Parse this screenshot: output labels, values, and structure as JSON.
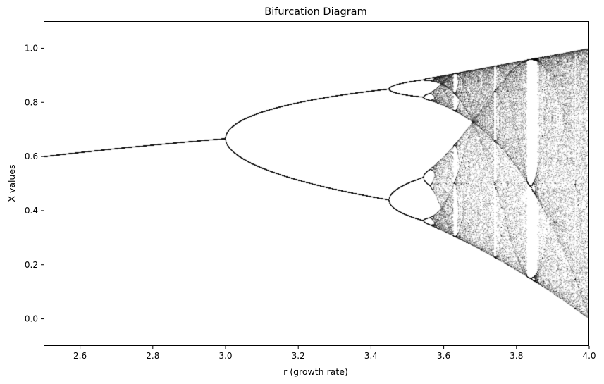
{
  "chart_data": {
    "type": "scatter",
    "title": "Bifurcation Diagram",
    "xlabel": "r (growth rate)",
    "ylabel": "X values",
    "xlim": [
      2.5,
      4.0
    ],
    "ylim": [
      -0.1,
      1.1
    ],
    "x_ticks": [
      "2.6",
      "2.8",
      "3.0",
      "3.2",
      "3.4",
      "3.6",
      "3.8",
      "4.0"
    ],
    "y_ticks": [
      "0.0",
      "0.2",
      "0.4",
      "0.6",
      "0.8",
      "1.0"
    ],
    "grid": false,
    "legend": "none",
    "marker_color": "#000000",
    "series": [
      {
        "points_description_free": true,
        "fixed_point_branch": [
          {
            "r": 2.5,
            "x": 0.6
          },
          {
            "r": 2.8,
            "x": 0.643
          },
          {
            "r": 3.0,
            "x": 0.667
          }
        ],
        "period2_branches": [
          {
            "r": 3.2,
            "x": [
              0.513,
              0.799
            ]
          },
          {
            "r": 3.4,
            "x": [
              0.452,
              0.842
            ]
          },
          {
            "r": 3.449,
            "x": [
              0.44,
              0.85
            ]
          }
        ],
        "period4_onset_r": 3.449,
        "period8_onset_r": 3.544,
        "chaos_onset_r": 3.5699,
        "period3_window_r": [
          3.828,
          3.857
        ],
        "upper_envelope": [
          {
            "r": 3.57,
            "x": 0.892
          },
          {
            "r": 3.8,
            "x": 0.95
          },
          {
            "r": 4.0,
            "x": 1.0
          }
        ],
        "lower_envelope": [
          {
            "r": 3.57,
            "x": 0.35
          },
          {
            "r": 3.8,
            "x": 0.18
          },
          {
            "r": 4.0,
            "x": 0.0
          }
        ]
      }
    ]
  }
}
